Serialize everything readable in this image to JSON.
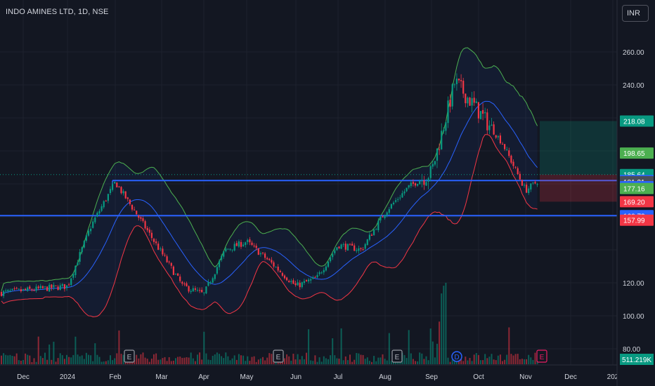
{
  "header": {
    "title": "INDO AMINES LTD, 1D, NSE",
    "currency": "INR"
  },
  "colors": {
    "bg": "#131722",
    "up": "#089981",
    "down": "#f23645",
    "sma": "#2962ff",
    "upper_band": "#4caf50",
    "lower_band": "#f23645",
    "level": "#2962ff"
  },
  "chart_data": {
    "type": "candlestick",
    "title": "INDO AMINES LTD, 1D, NSE",
    "x_ticks": [
      "Dec",
      "2024",
      "Feb",
      "Mar",
      "Apr",
      "May",
      "Jun",
      "Jul",
      "Aug",
      "Sep",
      "Oct",
      "Nov",
      "Dec",
      "202"
    ],
    "y_ticks": [
      "260.00",
      "240.00",
      "120.00",
      "100.00",
      "80.00"
    ],
    "ylim": [
      78,
      272
    ],
    "anchors": [
      [
        "Dec",
        114
      ],
      [
        "2024",
        118
      ],
      [
        "2024",
        155
      ],
      [
        "Feb",
        181
      ],
      [
        "Feb",
        160
      ],
      [
        "Mar",
        138
      ],
      [
        "Mar",
        118
      ],
      [
        "Apr",
        113
      ],
      [
        "Apr",
        140
      ],
      [
        "May",
        145
      ],
      [
        "May",
        132
      ],
      [
        "Jun",
        118
      ],
      [
        "Jun",
        123
      ],
      [
        "Jul",
        143
      ],
      [
        "Jul",
        140
      ],
      [
        "Aug",
        163
      ],
      [
        "Aug",
        178
      ],
      [
        "Sep",
        187
      ],
      [
        "Sep",
        242
      ],
      [
        "Oct",
        224
      ],
      [
        "Oct",
        205
      ],
      [
        "Nov",
        176
      ],
      [
        "Nov",
        182
      ]
    ],
    "horizontal_levels": [
      182.0,
      160.73
    ],
    "position_tool": {
      "entry": 185.64,
      "target": 218.08,
      "stop": 169.2
    },
    "volume_label": "511.219K",
    "earnings_markers": [
      {
        "label": "E",
        "x_tick": "Feb"
      },
      {
        "label": "E",
        "x_tick": "May"
      },
      {
        "label": "E",
        "x_tick": "Aug"
      },
      {
        "label": "D",
        "x_tick": "Sep"
      },
      {
        "label": "E",
        "x_tick": "Nov"
      }
    ],
    "price_tags": [
      {
        "value": "218.08",
        "price": 218.08,
        "color": "#089981"
      },
      {
        "value": "198.65",
        "price": 198.65,
        "color": "#4caf50"
      },
      {
        "value": "185.64",
        "price": 185.64,
        "color": "#089981"
      },
      {
        "value": "182.00",
        "price": 182.0,
        "color": "#2962ff"
      },
      {
        "value": "181.31",
        "price": 181.31,
        "color": "#4a4e59"
      },
      {
        "value": "178.32",
        "price": 178.32,
        "color": "#2962ff"
      },
      {
        "value": "177.16",
        "price": 177.16,
        "color": "#4caf50"
      },
      {
        "value": "169.20",
        "price": 169.2,
        "color": "#f23645"
      },
      {
        "value": "160.73",
        "price": 160.73,
        "color": "#2962ff"
      },
      {
        "value": "157.99",
        "price": 157.99,
        "color": "#f23645"
      }
    ]
  }
}
